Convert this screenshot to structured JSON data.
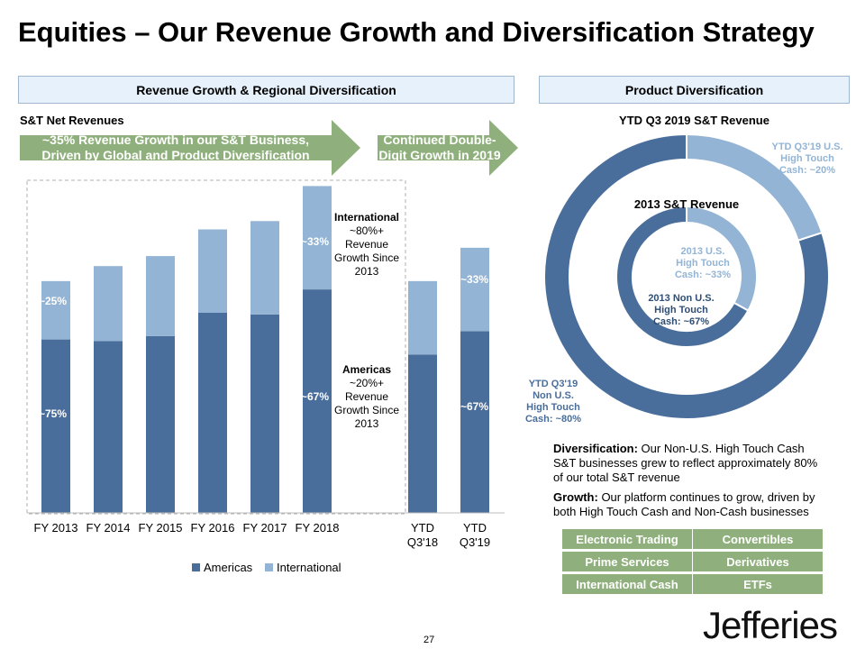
{
  "title": "Equities – Our Revenue Growth and Diversification Strategy",
  "sections": {
    "left": "Revenue Growth & Regional Diversification",
    "right": "Product Diversification"
  },
  "colors": {
    "americas": "#4a6e9b",
    "international": "#93b4d4",
    "green": "#8fb07c",
    "header_bg": "#e6f1fb"
  },
  "arrows": {
    "growth": [
      "~35% Revenue Growth in our S&T Business,",
      "Driven by Global and Product Diversification"
    ],
    "continued": [
      "Continued Double-",
      "Digit Growth in 2019"
    ]
  },
  "bar_annotations": {
    "fy2013_intl": "~25%",
    "fy2013_amer": "~75%",
    "fy2018_intl": "~33%",
    "fy2018_amer": "~67%",
    "ytdq319_intl": "~33%",
    "ytdq319_amer": "~67%"
  },
  "notes": {
    "international": {
      "bold": "International",
      "lines": [
        "~80%+",
        "Revenue",
        "Growth Since",
        "2013"
      ]
    },
    "americas": {
      "bold": "Americas",
      "lines": [
        "~20%+",
        "Revenue",
        "Growth Since",
        "2013"
      ]
    }
  },
  "chart_data": [
    {
      "type": "bar",
      "stacked": true,
      "title": "S&T Net Revenues",
      "categories": [
        "FY 2013",
        "FY 2014",
        "FY 2015",
        "FY 2016",
        "FY 2017",
        "FY 2018",
        "YTD Q3'18",
        "YTD Q3'19"
      ],
      "series": [
        {
          "name": "Americas",
          "values": [
            52,
            51.5,
            53,
            60,
            59.5,
            67,
            47.5,
            54.5
          ]
        },
        {
          "name": "International",
          "values": [
            17.5,
            22.5,
            24,
            25,
            28,
            31,
            22,
            25
          ]
        }
      ],
      "ylim": [
        0,
        100
      ],
      "legend": "bottom"
    },
    {
      "type": "pie",
      "title": "YTD Q3 2019 S&T Revenue",
      "inner_title": "2013 S&T Revenue",
      "outer": [
        {
          "name": "YTD Q3'19 U.S. High Touch Cash",
          "label": "~20%",
          "value": 20
        },
        {
          "name": "YTD Q3'19 Non U.S. High Touch Cash",
          "label": "~80%",
          "value": 80
        }
      ],
      "inner": [
        {
          "name": "2013 U.S. High Touch Cash",
          "label": "~33%",
          "value": 33
        },
        {
          "name": "2013 Non U.S. High Touch Cash",
          "label": "~67%",
          "value": 67
        }
      ]
    }
  ],
  "donut_labels": {
    "outer_us": [
      "YTD Q3'19 U.S.",
      "High Touch",
      "Cash: ~20%"
    ],
    "outer_nonus": [
      "YTD Q3'19",
      "Non U.S.",
      "High Touch",
      "Cash: ~80%"
    ],
    "inner_us": [
      "2013 U.S.",
      "High Touch",
      "Cash: ~33%"
    ],
    "inner_nonus": [
      "2013 Non U.S.",
      "High Touch",
      "Cash: ~67%"
    ]
  },
  "diversification": {
    "bold": "Diversification:",
    "text": " Our Non-U.S. High Touch Cash S&T businesses grew to reflect approximately 80% of our total S&T revenue"
  },
  "growth": {
    "bold": "Growth:",
    "text": " Our platform continues to grow, driven by both High Touch Cash and Non-Cash businesses"
  },
  "products": [
    "Electronic Trading",
    "Convertibles",
    "Prime Services",
    "Derivatives",
    "International Cash",
    "ETFs"
  ],
  "logo": "Jefferies",
  "page_number": "27"
}
